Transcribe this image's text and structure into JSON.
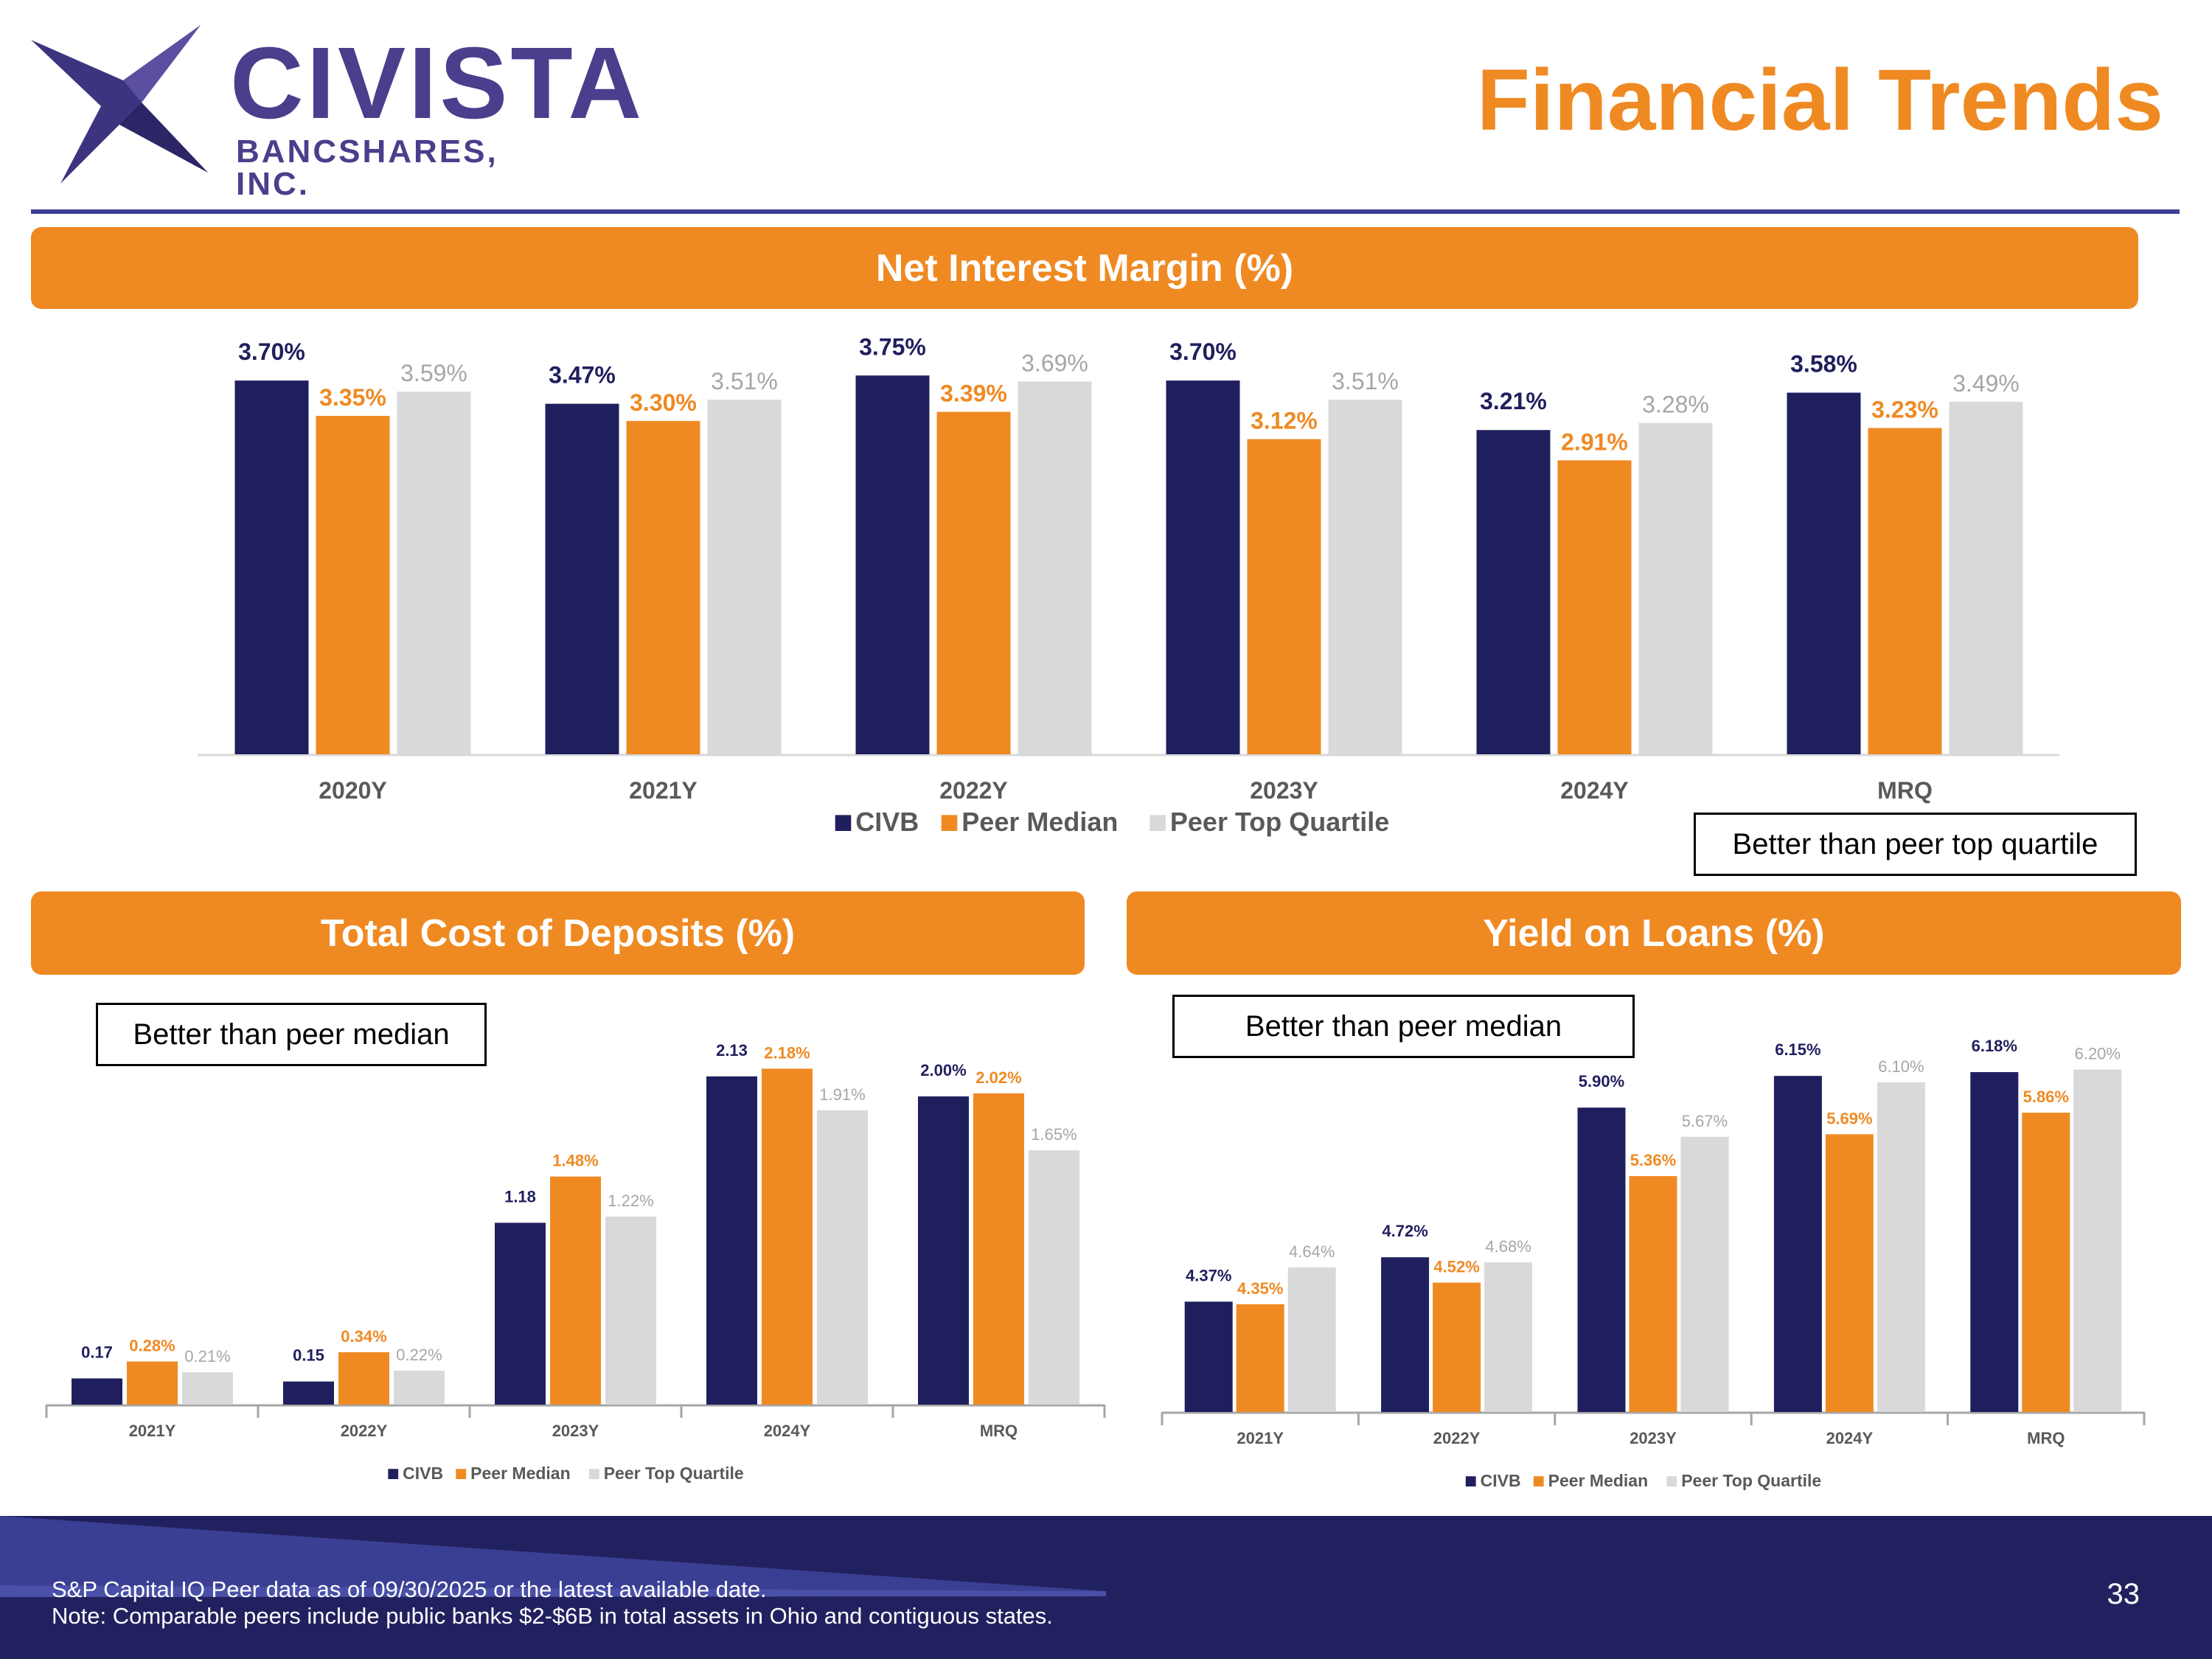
{
  "header": {
    "logo": {
      "name": "CIVISTA",
      "subtitle": "BANCSHARES, INC."
    },
    "title": "Financial Trends"
  },
  "colors": {
    "civb": "#201f5e",
    "peer_median": "#ef8a23",
    "peer_top_quartile": "#d9d9d9",
    "banner": "#ef8a23",
    "rule": "#3c3f94"
  },
  "legend": {
    "civb": "CIVB",
    "peer_median": "Peer Median",
    "peer_top_quartile": "Peer Top Quartile"
  },
  "chart_data": [
    {
      "id": "nim",
      "type": "bar",
      "title": "Net Interest Margin (%)",
      "callout": "Better than peer top quartile",
      "categories": [
        "2020Y",
        "2021Y",
        "2022Y",
        "2023Y",
        "2024Y",
        "MRQ"
      ],
      "ylim": [
        0,
        3.75
      ],
      "legend_position": "bottom",
      "series": [
        {
          "name": "CIVB",
          "values": [
            3.7,
            3.47,
            3.75,
            3.7,
            3.21,
            3.58
          ],
          "labels": [
            "3.70%",
            "3.47%",
            "3.75%",
            "3.70%",
            "3.21%",
            "3.58%"
          ]
        },
        {
          "name": "Peer Median",
          "values": [
            3.35,
            3.3,
            3.39,
            3.12,
            2.91,
            3.23
          ],
          "labels": [
            "3.35%",
            "3.30%",
            "3.39%",
            "3.12%",
            "2.91%",
            "3.23%"
          ]
        },
        {
          "name": "Peer Top Quartile",
          "values": [
            3.59,
            3.51,
            3.69,
            3.51,
            3.28,
            3.49
          ],
          "labels": [
            "3.59%",
            "3.51%",
            "3.69%",
            "3.51%",
            "3.28%",
            "3.49%"
          ]
        }
      ]
    },
    {
      "id": "cod",
      "type": "bar",
      "title": "Total Cost of Deposits (%)",
      "callout": "Better than peer median",
      "categories": [
        "2021Y",
        "2022Y",
        "2023Y",
        "2024Y",
        "MRQ"
      ],
      "ylim": [
        0,
        2.18
      ],
      "legend_position": "bottom",
      "series": [
        {
          "name": "CIVB",
          "values": [
            0.17,
            0.15,
            1.18,
            2.13,
            2.0
          ],
          "labels": [
            "0.17",
            "0.15",
            "1.18",
            "2.13",
            "2.00%"
          ]
        },
        {
          "name": "Peer Median",
          "values": [
            0.28,
            0.34,
            1.48,
            2.18,
            2.02
          ],
          "labels": [
            "0.28%",
            "0.34%",
            "1.48%",
            "2.18%",
            "2.02%"
          ]
        },
        {
          "name": "Peer Top Quartile",
          "values": [
            0.21,
            0.22,
            1.22,
            1.91,
            1.65
          ],
          "labels": [
            "0.21%",
            "0.22%",
            "1.22%",
            "1.91%",
            "1.65%"
          ]
        }
      ]
    },
    {
      "id": "yol",
      "type": "bar",
      "title": "Yield on Loans (%)",
      "callout": "Better than peer median",
      "categories": [
        "2021Y",
        "2022Y",
        "2023Y",
        "2024Y",
        "MRQ"
      ],
      "ylim": [
        3.5,
        6.2
      ],
      "legend_position": "bottom",
      "series": [
        {
          "name": "CIVB",
          "values": [
            4.37,
            4.72,
            5.9,
            6.15,
            6.18
          ],
          "labels": [
            "4.37%",
            "4.72%",
            "5.90%",
            "6.15%",
            "6.18%"
          ]
        },
        {
          "name": "Peer Median",
          "values": [
            4.35,
            4.52,
            5.36,
            5.69,
            5.86
          ],
          "labels": [
            "4.35%",
            "4.52%",
            "5.36%",
            "5.69%",
            "5.86%"
          ]
        },
        {
          "name": "Peer Top Quartile",
          "values": [
            4.64,
            4.68,
            5.67,
            6.1,
            6.2
          ],
          "labels": [
            "4.64%",
            "4.68%",
            "5.67%",
            "6.10%",
            "6.20%"
          ]
        }
      ]
    }
  ],
  "footer": {
    "source": "S&P Capital IQ Peer data as of 09/30/2025 or the latest available date.",
    "note": "Note: Comparable peers include public banks $2-$6B in total assets in Ohio and contiguous states.",
    "page_number": "33"
  }
}
